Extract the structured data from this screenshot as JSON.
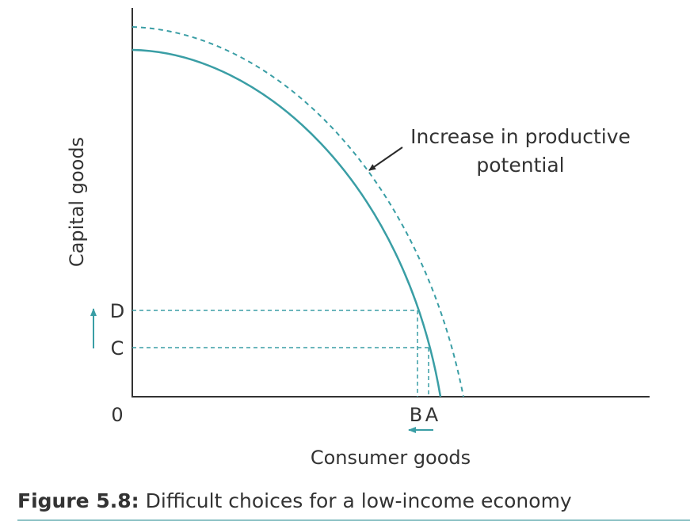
{
  "diagram": {
    "y_axis_label": "Capital goods",
    "x_axis_label": "Consumer goods",
    "origin_label": "0",
    "y_points": [
      "D",
      "C"
    ],
    "x_points": [
      "B",
      "A"
    ],
    "annotation": [
      "Increase in productive",
      "potential"
    ]
  },
  "caption": {
    "number": "Figure 5.8:",
    "text": "Difficult choices for a low-income economy"
  }
}
